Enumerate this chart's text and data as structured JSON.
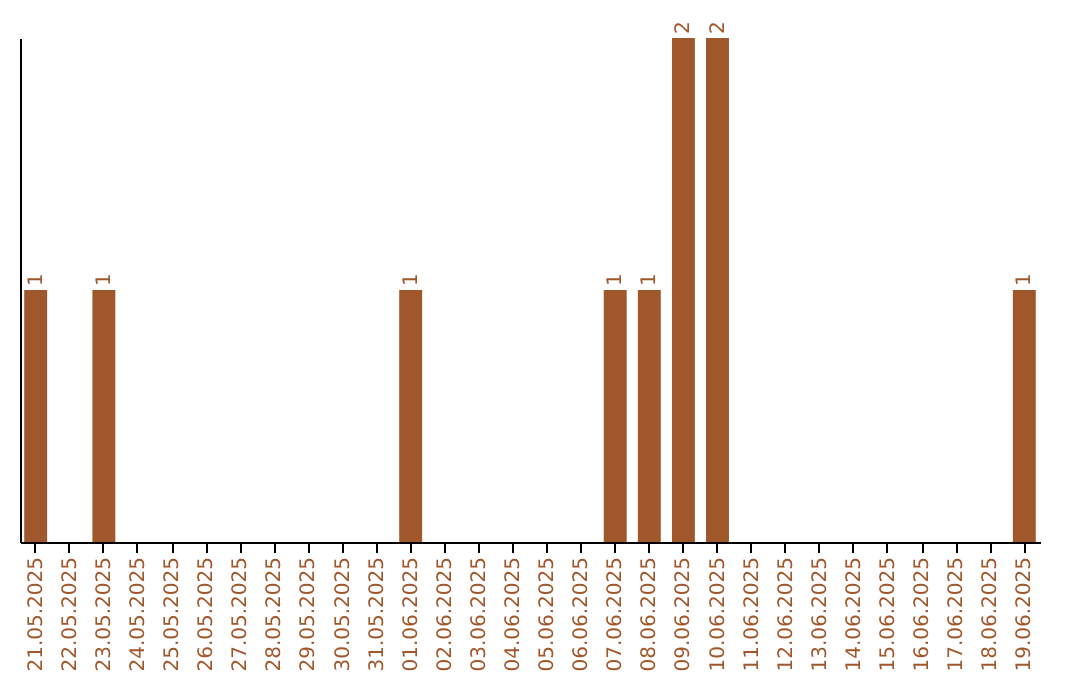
{
  "chart_data": {
    "type": "bar",
    "categories": [
      "21.05.2025",
      "22.05.2025",
      "23.05.2025",
      "24.05.2025",
      "25.05.2025",
      "26.05.2025",
      "27.05.2025",
      "28.05.2025",
      "29.05.2025",
      "30.05.2025",
      "31.05.2025",
      "01.06.2025",
      "02.06.2025",
      "03.06.2025",
      "04.06.2025",
      "05.06.2025",
      "06.06.2025",
      "07.06.2025",
      "08.06.2025",
      "09.06.2025",
      "10.06.2025",
      "11.06.2025",
      "12.06.2025",
      "13.06.2025",
      "14.06.2025",
      "15.06.2025",
      "16.06.2025",
      "17.06.2025",
      "18.06.2025",
      "19.06.2025"
    ],
    "values": [
      1,
      0,
      1,
      0,
      0,
      0,
      0,
      0,
      0,
      0,
      0,
      1,
      0,
      0,
      0,
      0,
      0,
      1,
      1,
      2,
      2,
      0,
      0,
      0,
      0,
      0,
      0,
      0,
      0,
      1
    ],
    "value_labels": [
      "1",
      null,
      "1",
      null,
      null,
      null,
      null,
      null,
      null,
      null,
      null,
      "1",
      null,
      null,
      null,
      null,
      null,
      "1",
      "1",
      "2",
      "2",
      null,
      null,
      null,
      null,
      null,
      null,
      null,
      null,
      "1"
    ],
    "color": "#a0572b",
    "grid": false
  }
}
